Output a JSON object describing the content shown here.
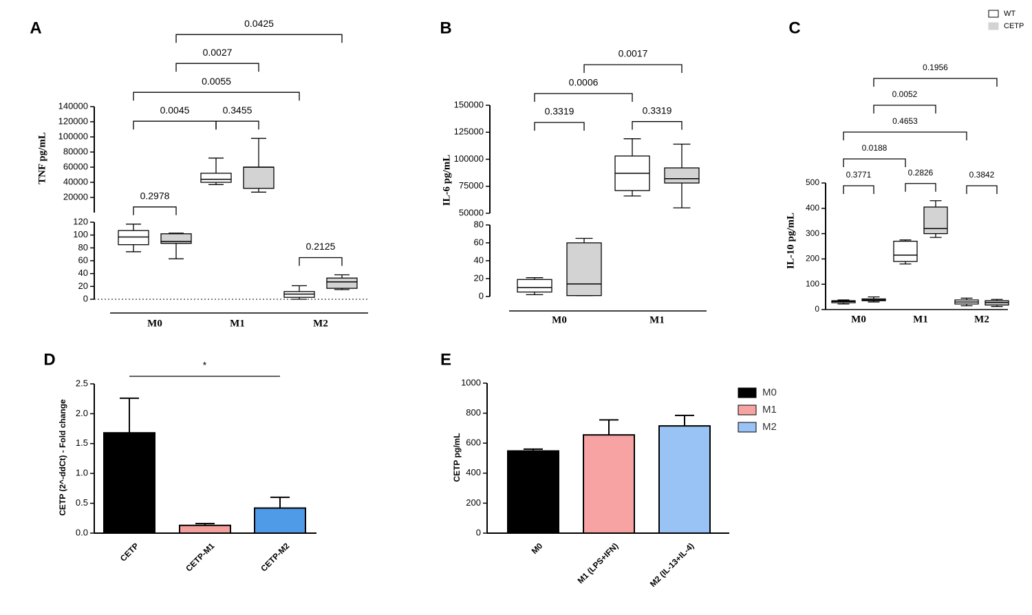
{
  "chart_data": [
    {
      "type": "box",
      "panel": "A",
      "ylabel": "TNF pg/mL",
      "categories": [
        "M0",
        "M1",
        "M2"
      ],
      "series": [
        {
          "color": "#ffffff",
          "values": [
            [
              74,
              85,
              97,
              107,
              117
            ],
            [
              37000,
              40000,
              44000,
              52000,
              72000
            ],
            [
              0,
              3,
              8,
              12,
              21
            ]
          ]
        },
        {
          "color": "#d3d3d3",
          "values": [
            [
              63,
              87,
              90,
              102,
              103
            ],
            [
              27000,
              32000,
              60000,
              60000,
              98000
            ],
            [
              15,
              17,
              27,
              33,
              38
            ]
          ]
        }
      ],
      "ylim": [
        0,
        120
      ],
      "yticks": [
        0,
        20,
        40,
        60,
        80,
        100,
        120
      ],
      "ylim_upper": [
        0,
        140000
      ],
      "yticks_upper": [
        20000,
        40000,
        60000,
        80000,
        100000,
        120000,
        140000
      ],
      "comparisons": [
        {
          "label": "0.2978",
          "from": [
            0,
            0
          ],
          "to": [
            0,
            1
          ]
        },
        {
          "label": "0.2125",
          "from": [
            2,
            0
          ],
          "to": [
            2,
            1
          ]
        },
        {
          "label": "0.0045",
          "from": [
            0,
            0
          ],
          "to": [
            1,
            0
          ]
        },
        {
          "label": "0.3455",
          "from": [
            1,
            0
          ],
          "to": [
            1,
            1
          ]
        },
        {
          "label": "0.0055",
          "from": [
            0,
            0
          ],
          "to": [
            2,
            0
          ]
        },
        {
          "label": "0.0027",
          "from": [
            0,
            1
          ],
          "to": [
            1,
            1
          ]
        },
        {
          "label": "0.0425",
          "from": [
            0,
            1
          ],
          "to": [
            2,
            1
          ]
        }
      ]
    },
    {
      "type": "box",
      "panel": "B",
      "ylabel": "IL-6 pg/mL",
      "categories": [
        "M0",
        "M1"
      ],
      "series": [
        {
          "color": "#ffffff",
          "values": [
            [
              2,
              5,
              10,
              19,
              21
            ],
            [
              66000,
              71000,
              87000,
              103000,
              119000
            ]
          ]
        },
        {
          "color": "#d3d3d3",
          "values": [
            [
              1,
              1,
              14,
              60,
              65
            ],
            [
              55000,
              78000,
              82000,
              92000,
              114000
            ]
          ]
        }
      ],
      "ylim": [
        0,
        80
      ],
      "yticks": [
        0,
        20,
        40,
        60,
        80
      ],
      "ylim_upper": [
        50000,
        150000
      ],
      "yticks_upper": [
        50000,
        75000,
        100000,
        125000,
        150000
      ],
      "comparisons": [
        {
          "label": "0.3319",
          "from": [
            0,
            0
          ],
          "to": [
            0,
            1
          ]
        },
        {
          "label": "0.3319",
          "from": [
            1,
            0
          ],
          "to": [
            1,
            1
          ]
        },
        {
          "label": "0.0006",
          "from": [
            0,
            0
          ],
          "to": [
            1,
            0
          ]
        },
        {
          "label": "0.0017",
          "from": [
            0,
            1
          ],
          "to": [
            1,
            1
          ]
        }
      ]
    },
    {
      "type": "box",
      "panel": "C",
      "ylabel": "IL-10 pg/mL",
      "categories": [
        "M0",
        "M1",
        "M2"
      ],
      "series": [
        {
          "name": "WT",
          "color": "#ffffff",
          "values": [
            [
              22,
              27,
              32,
              35,
              38
            ],
            [
              180,
              190,
              215,
              270,
              275
            ],
            [
              15,
              22,
              30,
              38,
              45
            ]
          ]
        },
        {
          "name": "CETP",
          "color": "#d3d3d3",
          "values": [
            [
              30,
              35,
              38,
              42,
              50
            ],
            [
              285,
              300,
              320,
              405,
              430
            ],
            [
              12,
              18,
              28,
              35,
              40
            ]
          ]
        }
      ],
      "ylim": [
        0,
        500
      ],
      "yticks": [
        0,
        100,
        200,
        300,
        400,
        500
      ],
      "comparisons": [
        {
          "label": "0.3771",
          "from": [
            0,
            0
          ],
          "to": [
            0,
            1
          ]
        },
        {
          "label": "0.2826",
          "from": [
            1,
            0
          ],
          "to": [
            1,
            1
          ]
        },
        {
          "label": "0.3842",
          "from": [
            2,
            0
          ],
          "to": [
            2,
            1
          ]
        },
        {
          "label": "0.0188",
          "from": [
            0,
            0
          ],
          "to": [
            1,
            0
          ]
        },
        {
          "label": "0.4653",
          "from": [
            0,
            0
          ],
          "to": [
            2,
            0
          ]
        },
        {
          "label": "0.0052",
          "from": [
            0,
            1
          ],
          "to": [
            1,
            1
          ]
        },
        {
          "label": "0.1956",
          "from": [
            0,
            1
          ],
          "to": [
            2,
            1
          ]
        }
      ]
    },
    {
      "type": "bar",
      "panel": "D",
      "ylabel": "CETP (2^-ddCt) - Fold change",
      "categories": [
        "CETP",
        "CETP-M1",
        "CETP-M2"
      ],
      "values": [
        1.68,
        0.13,
        0.42
      ],
      "errors": [
        0.58,
        0.03,
        0.18
      ],
      "colors": [
        "#000000",
        "#f4a09c",
        "#4f9be8"
      ],
      "ylim": [
        0,
        2.5
      ],
      "yticks": [
        {
          "value": 0,
          "label": "0.0"
        },
        0.5,
        {
          "value": 1,
          "label": "1.0"
        },
        1.5,
        {
          "value": 2,
          "label": "2.0"
        },
        2.5
      ],
      "annotation": {
        "label": "*",
        "from": 0,
        "to": 2
      }
    },
    {
      "type": "bar",
      "panel": "E",
      "ylabel": "CETP pg/mL",
      "categories": [
        "M0",
        "M1 (LPS+IFN)",
        "M2 (IL-13+IL-4)"
      ],
      "values": [
        548,
        655,
        715
      ],
      "errors": [
        12,
        100,
        70
      ],
      "colors": [
        "#000000",
        "#f7a3a3",
        "#99c2f5"
      ],
      "legend": [
        "M0",
        "M1",
        "M2"
      ],
      "ylim": [
        0,
        1000
      ],
      "yticks": [
        0,
        200,
        400,
        600,
        800,
        1000
      ]
    }
  ]
}
